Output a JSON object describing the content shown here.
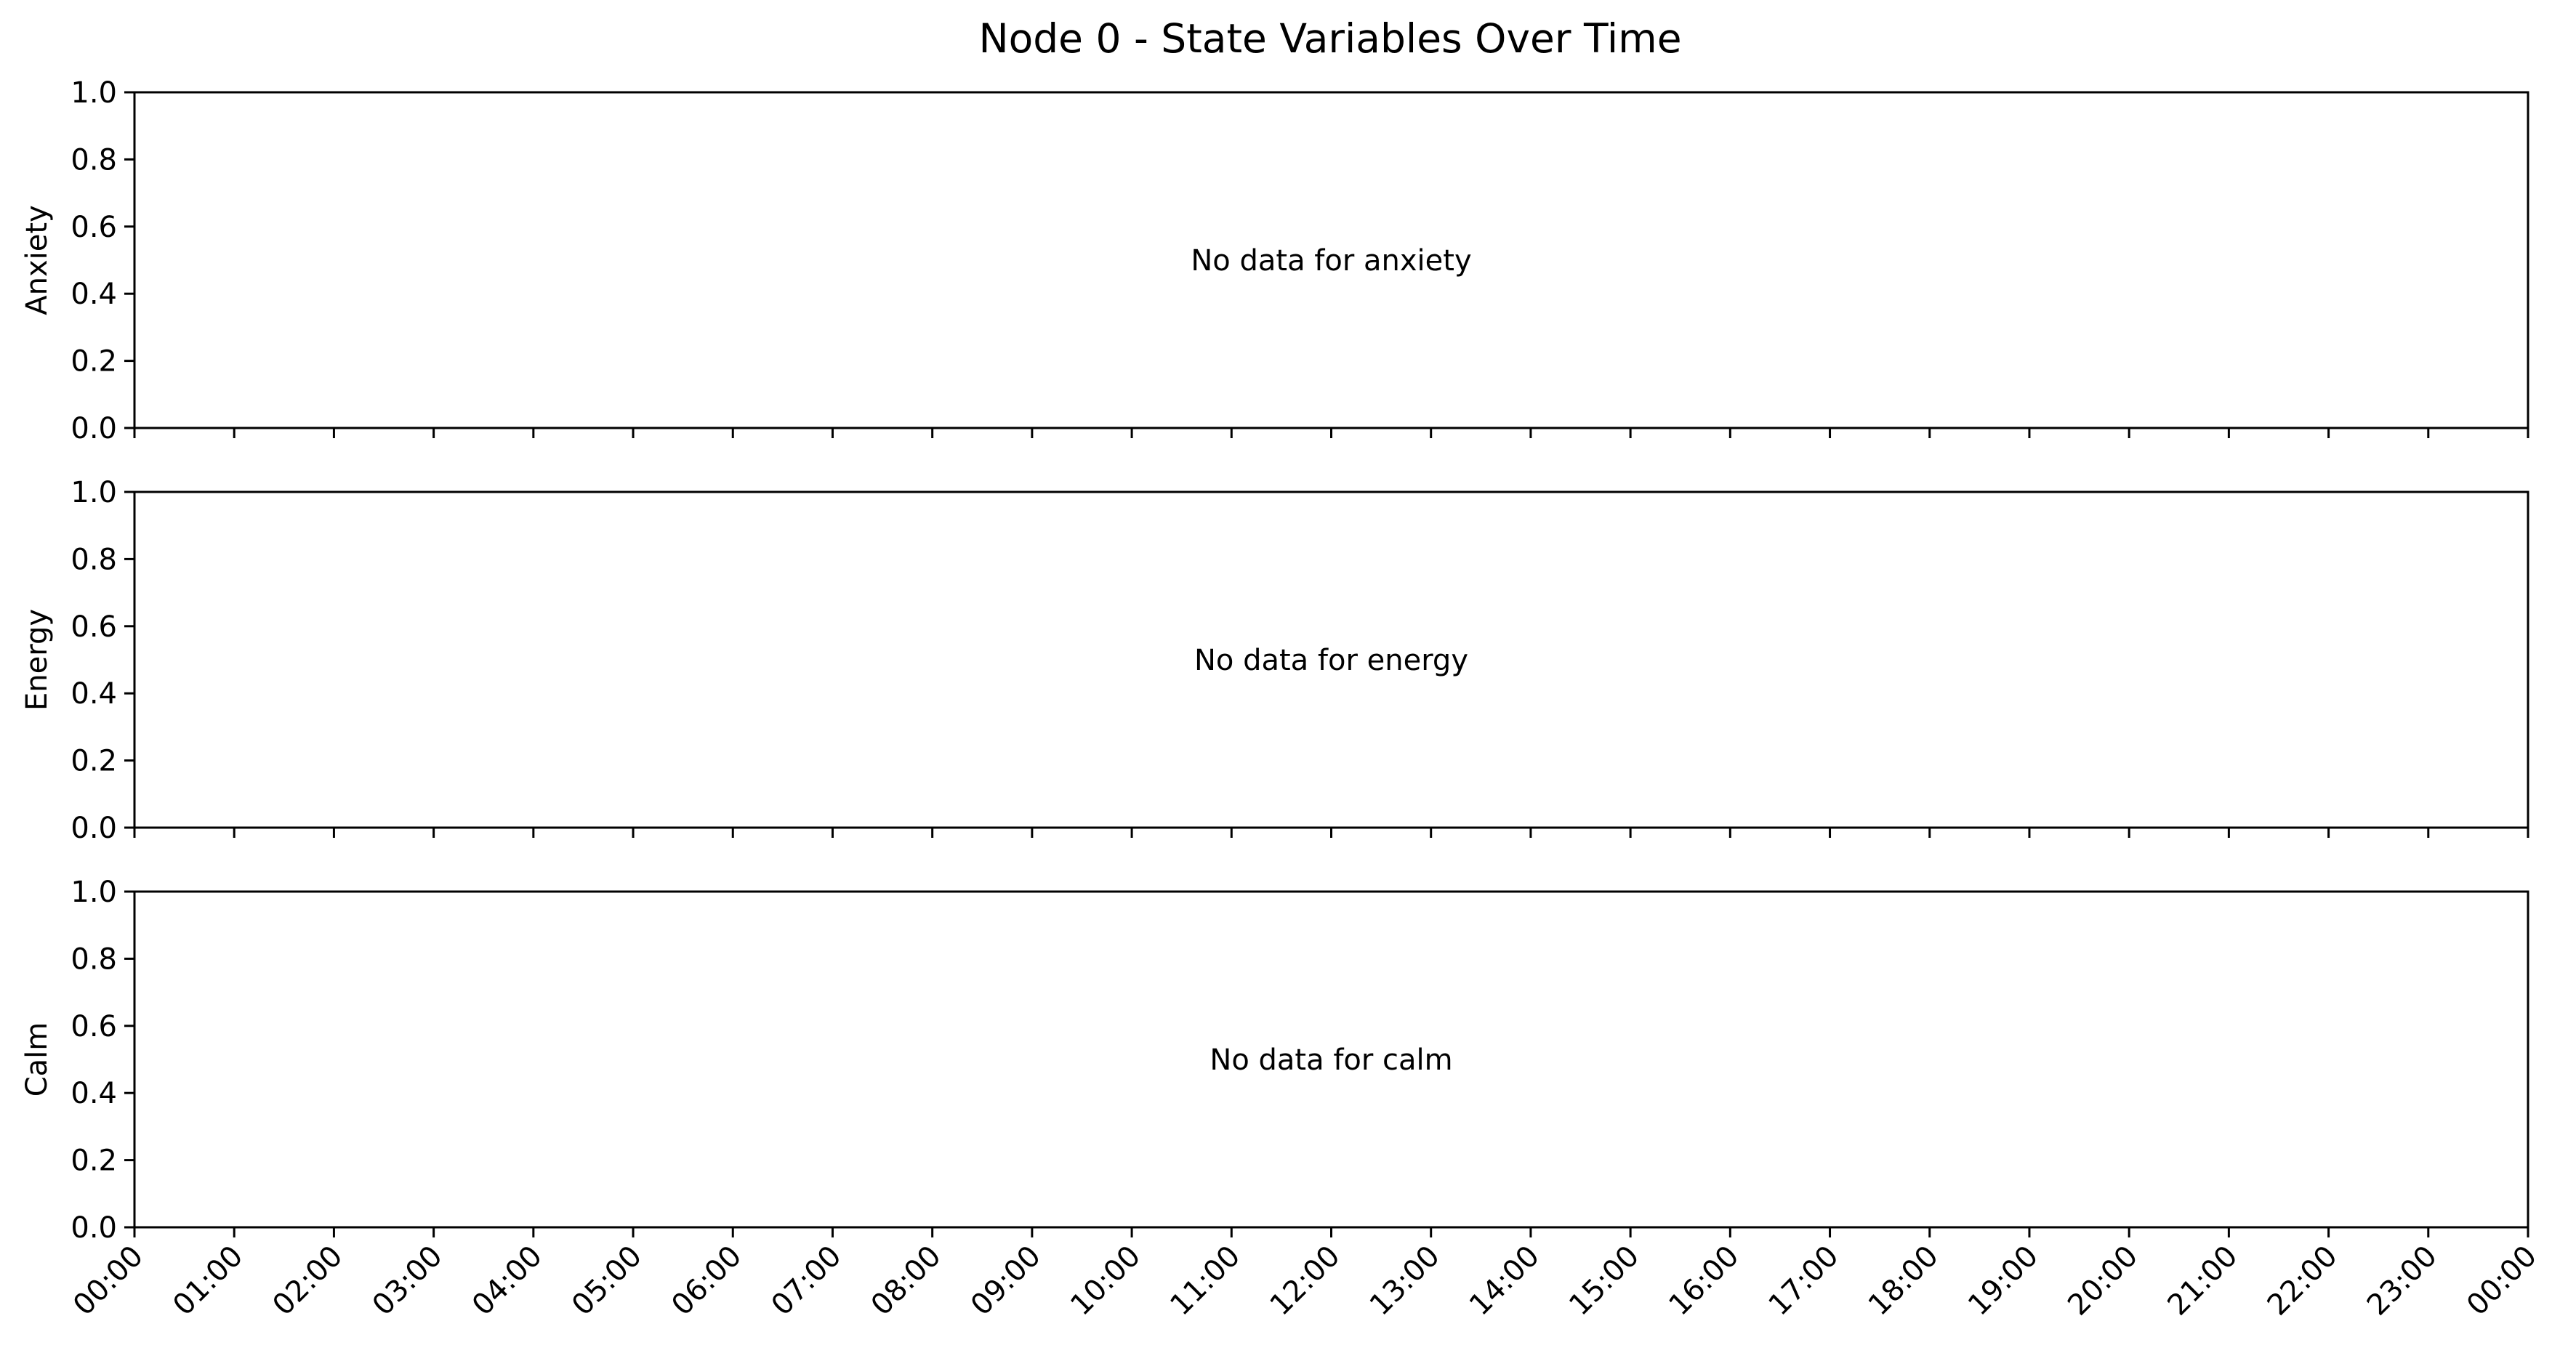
{
  "chart_data": {
    "type": "line",
    "title": "Node 0 - State Variables Over Time",
    "x_ticks": [
      "00:00",
      "01:00",
      "02:00",
      "03:00",
      "04:00",
      "05:00",
      "06:00",
      "07:00",
      "08:00",
      "09:00",
      "10:00",
      "11:00",
      "12:00",
      "13:00",
      "14:00",
      "15:00",
      "16:00",
      "17:00",
      "18:00",
      "19:00",
      "20:00",
      "21:00",
      "22:00",
      "23:00",
      "00:00"
    ],
    "shared_x": true,
    "panels": [
      {
        "ylabel": "Anxiety",
        "ylim": [
          0,
          1
        ],
        "y_ticks": [
          "0.0",
          "0.2",
          "0.4",
          "0.6",
          "0.8",
          "1.0"
        ],
        "message": "No data for anxiety",
        "series": []
      },
      {
        "ylabel": "Energy",
        "ylim": [
          0,
          1
        ],
        "y_ticks": [
          "0.0",
          "0.2",
          "0.4",
          "0.6",
          "0.8",
          "1.0"
        ],
        "message": "No data for energy",
        "series": []
      },
      {
        "ylabel": "Calm",
        "ylim": [
          0,
          1
        ],
        "y_ticks": [
          "0.0",
          "0.2",
          "0.4",
          "0.6",
          "0.8",
          "1.0"
        ],
        "message": "No data for calm",
        "series": []
      }
    ],
    "grid": false,
    "legend": "none"
  }
}
